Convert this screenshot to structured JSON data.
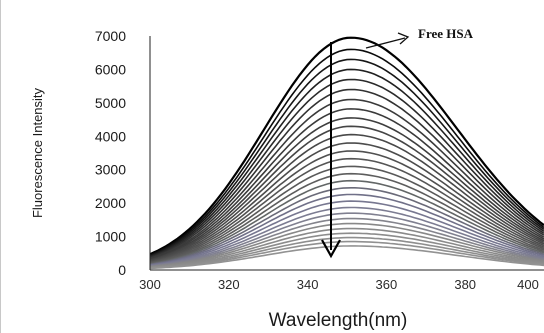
{
  "chart_data": {
    "type": "line",
    "title": "",
    "xlabel": "Wavelength(nm)",
    "ylabel": "Fluorescence Intensity",
    "xlim": [
      300,
      400
    ],
    "ylim": [
      0,
      7000
    ],
    "x_ticks": [
      "300",
      "320",
      "340",
      "360",
      "380",
      "400"
    ],
    "y_ticks": [
      "0",
      "1000",
      "2000",
      "3000",
      "4000",
      "5000",
      "6000",
      "7000"
    ],
    "grid": false,
    "legend": "none",
    "peak_wavelength": 351,
    "curve_peaks": [
      6950,
      6600,
      6300,
      6000,
      5700,
      5400,
      5100,
      4820,
      4550,
      4300,
      4050,
      3800,
      3560,
      3330,
      3100,
      2880,
      2670,
      2460,
      2260,
      2060,
      1870,
      1700,
      1540,
      1390,
      1240,
      1100,
      970,
      850,
      720
    ],
    "curve_colors": [
      "#000000",
      "#0b0b0b",
      "#161616",
      "#202020",
      "#2a2a2a",
      "#323232",
      "#3a3a3a",
      "#3a3a3a",
      "#3e3e3e",
      "#454545",
      "#484848",
      "#4c4c4c",
      "#505050",
      "#555555",
      "#595959",
      "#5d5d5d",
      "#626666",
      "#6a6a78",
      "#707088",
      "#777790",
      "#7c7c92",
      "#808090",
      "#84848c",
      "#888888",
      "#8a8a8a",
      "#8c8c8c",
      "#8e8e8e",
      "#909090",
      "#929292"
    ],
    "annotations": {
      "free_hsa_label": "Free HSA",
      "trend": "decreasing"
    }
  }
}
